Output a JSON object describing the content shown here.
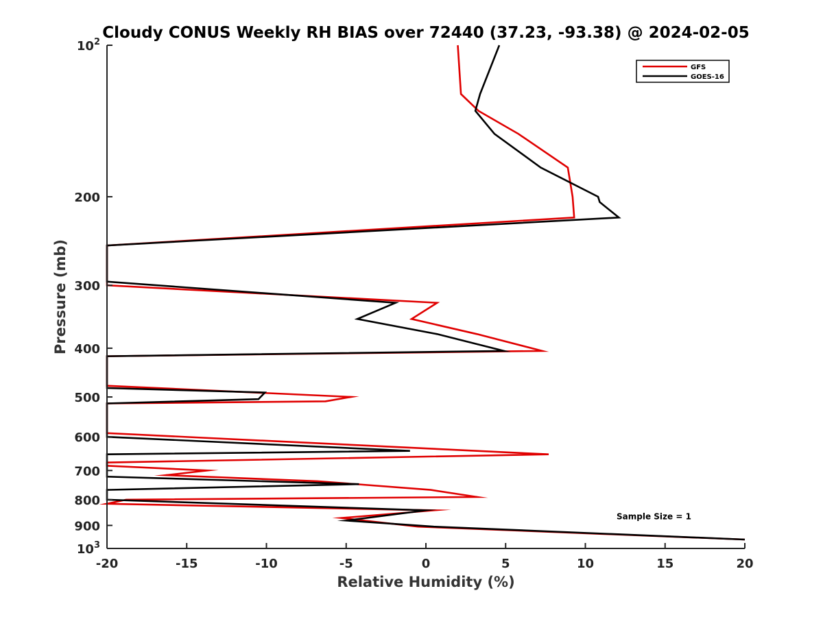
{
  "chart_data": {
    "type": "line",
    "title": "Cloudy CONUS Weekly RH BIAS over 72440 (37.23, -93.38) @ 2024-02-05",
    "xlabel": "Relative Humidity (%)",
    "ylabel": "Pressure (mb)",
    "xlim": [
      -20,
      20
    ],
    "ylim": [
      100,
      1000
    ],
    "y_scale": "log",
    "y_reversed": true,
    "grid": false,
    "legend_position": "top-right",
    "x_ticks": [
      -20,
      -15,
      -10,
      -5,
      0,
      5,
      10,
      15,
      20
    ],
    "x_tick_labels": [
      "-20",
      "-15",
      "-10",
      "-5",
      "0",
      "5",
      "10",
      "15",
      "20"
    ],
    "y_ticks": [
      100,
      200,
      300,
      400,
      500,
      600,
      700,
      800,
      900,
      1000
    ],
    "y_tick_labels": [
      "10^2",
      "200",
      "300",
      "400",
      "500",
      "600",
      "700",
      "800",
      "900",
      "10^3"
    ],
    "series": [
      {
        "name": "GFS",
        "color": "#e00000",
        "points": [
          [
            2.0,
            100
          ],
          [
            2.2,
            125
          ],
          [
            3.3,
            135
          ],
          [
            5.8,
            150
          ],
          [
            8.9,
            175
          ],
          [
            9.2,
            200
          ],
          [
            9.3,
            220
          ],
          [
            -20,
            250
          ],
          [
            -20,
            300
          ],
          [
            0.7,
            325
          ],
          [
            -0.9,
            350
          ],
          [
            3.2,
            375
          ],
          [
            7.3,
            405
          ],
          [
            -20,
            415
          ],
          [
            -20,
            475
          ],
          [
            -4.7,
            500
          ],
          [
            -6.3,
            510
          ],
          [
            -20,
            515
          ],
          [
            -20,
            590
          ],
          [
            7.7,
            650
          ],
          [
            -20,
            675
          ],
          [
            -20,
            685
          ],
          [
            -13.7,
            700
          ],
          [
            -16.3,
            715
          ],
          [
            -6.8,
            735
          ],
          [
            0.3,
            765
          ],
          [
            3.2,
            790
          ],
          [
            -18.8,
            800
          ],
          [
            -20,
            815
          ],
          [
            0.5,
            840
          ],
          [
            -5.3,
            870
          ],
          [
            -0.5,
            905
          ],
          [
            20,
            960
          ]
        ]
      },
      {
        "name": "GOES-16",
        "color": "#000000",
        "points": [
          [
            4.6,
            100
          ],
          [
            3.4,
            125
          ],
          [
            3.1,
            135
          ],
          [
            4.3,
            150
          ],
          [
            7.2,
            175
          ],
          [
            10.8,
            200
          ],
          [
            10.9,
            205
          ],
          [
            12.1,
            220
          ],
          [
            -20,
            250
          ],
          [
            -20,
            295
          ],
          [
            -1.9,
            325
          ],
          [
            -4.3,
            350
          ],
          [
            0.7,
            375
          ],
          [
            4.9,
            405
          ],
          [
            -20,
            415
          ],
          [
            -20,
            480
          ],
          [
            -10.1,
            490
          ],
          [
            -10.5,
            505
          ],
          [
            -20,
            515
          ],
          [
            -20,
            600
          ],
          [
            -1.0,
            640
          ],
          [
            -20,
            650
          ],
          [
            -20,
            720
          ],
          [
            -4.2,
            745
          ],
          [
            -20,
            765
          ],
          [
            -20,
            800
          ],
          [
            0.0,
            840
          ],
          [
            -5.0,
            880
          ],
          [
            0.5,
            905
          ],
          [
            20,
            960
          ]
        ]
      }
    ],
    "annotations": [
      {
        "text": "Sample Size = 1",
        "x": 14.3,
        "y": 875
      }
    ]
  }
}
